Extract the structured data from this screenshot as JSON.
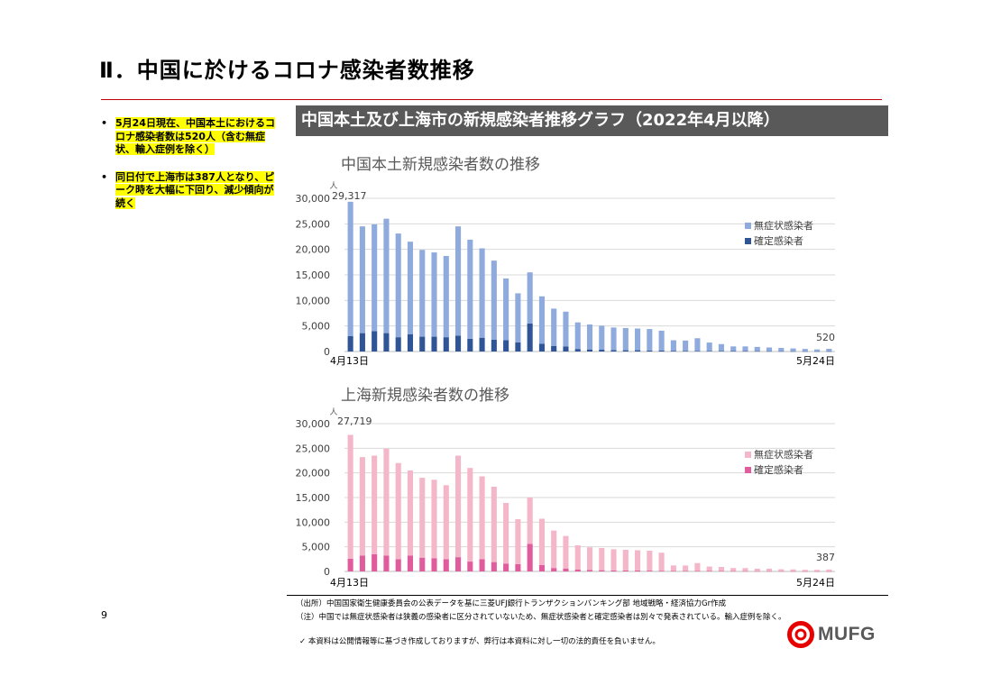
{
  "page": {
    "title": "Ⅱ．中国に於けるコロナ感染者数推移",
    "page_number": "9"
  },
  "bullets": [
    {
      "text": "5月24日現在、中国本土におけるコロナ感染者数は520人（含む無症状、輸入症例を除く）"
    },
    {
      "text": "同日付で上海市は387人となり、ピーク時を大幅に下回り、減少傾向が続く"
    }
  ],
  "banner": {
    "text": "中国本土及び上海市の新規感染者推移グラフ（2022年4月以降）"
  },
  "footer": {
    "source": "（出所）中国国家衛生健康委員会の公表データを基に三菱UFJ銀行トランザクションバンキング部 地域戦略・経済協力Gr作成",
    "note": "（注）中国では無症状感染者は狭義の感染者に区分されていないため、無症状感染者と確定感染者は別々で発表されている。輸入症例を除く。",
    "disclaimer": "✓ 本資料は公開情報等に基づき作成しておりますが、弊行は本資料に対し一切の法的責任を負いません。"
  },
  "logo": {
    "text": "MUFG",
    "color": "#e60000"
  },
  "colors": {
    "mainland_asymptomatic": "#8faadc",
    "mainland_confirmed": "#2f5597",
    "shanghai_asymptomatic": "#f4b6c9",
    "shanghai_confirmed": "#e05c9c",
    "banner": "#595959",
    "title_rule": "#c00000"
  },
  "chart_data": [
    {
      "type": "bar",
      "stacked": true,
      "title": "中国本土新規感染者数の推移",
      "ylabel": "人",
      "ylim": [
        0,
        30000
      ],
      "yticks": [
        "0",
        "5,000",
        "10,000",
        "15,000",
        "20,000",
        "25,000",
        "30,000"
      ],
      "x_first_label": "4月13日",
      "x_last_label": "5月24日",
      "legend_position": "right",
      "annotations": {
        "first": "29,317",
        "last": "520"
      },
      "grid": true,
      "series": [
        {
          "name": "確定感染者",
          "values": [
            3000,
            3600,
            4000,
            3600,
            2800,
            3400,
            2900,
            2900,
            2800,
            3100,
            2500,
            2700,
            2300,
            2200,
            1800,
            5500,
            1500,
            1100,
            1000,
            500,
            400,
            350,
            300,
            250,
            250,
            200,
            180,
            150,
            130,
            120,
            110,
            100,
            90,
            80,
            70,
            60,
            55,
            50,
            45,
            40,
            40
          ]
        },
        {
          "name": "無症状感染者",
          "values": [
            26317,
            20900,
            20900,
            22400,
            20300,
            18100,
            17000,
            16500,
            15900,
            21400,
            19400,
            17500,
            15500,
            12100,
            9600,
            10000,
            9300,
            7300,
            6800,
            5200,
            4900,
            4700,
            4400,
            4350,
            4250,
            4200,
            3900,
            2050,
            2020,
            2480,
            1640,
            1350,
            910,
            920,
            830,
            730,
            645,
            550,
            455,
            370,
            480
          ]
        }
      ]
    },
    {
      "type": "bar",
      "stacked": true,
      "title": "上海新規感染者数の推移",
      "ylabel": "人",
      "ylim": [
        0,
        30000
      ],
      "yticks": [
        "0",
        "5,000",
        "10,000",
        "15,000",
        "20,000",
        "25,000",
        "30,000"
      ],
      "x_first_label": "4月13日",
      "x_last_label": "5月24日",
      "legend_position": "right",
      "annotations": {
        "first": "27,719",
        "last": "387"
      },
      "grid": true,
      "series": [
        {
          "name": "確定感染者",
          "values": [
            2600,
            3200,
            3500,
            3200,
            2500,
            3200,
            2800,
            2700,
            2500,
            2900,
            2000,
            2500,
            1900,
            1600,
            1500,
            5600,
            1300,
            700,
            600,
            400,
            300,
            250,
            220,
            200,
            200,
            170,
            150,
            120,
            110,
            100,
            90,
            80,
            70,
            60,
            50,
            45,
            40,
            35,
            30,
            25,
            20
          ]
        },
        {
          "name": "無症状感染者",
          "values": [
            25119,
            20000,
            20000,
            21700,
            19500,
            17300,
            16200,
            15900,
            15000,
            20600,
            19000,
            16800,
            15300,
            12300,
            9100,
            9400,
            9400,
            7600,
            6600,
            4900,
            4600,
            4500,
            4280,
            4200,
            4100,
            4030,
            3650,
            1100,
            1100,
            1600,
            900,
            820,
            620,
            620,
            500,
            500,
            400,
            380,
            300,
            300,
            367
          ]
        }
      ]
    }
  ]
}
